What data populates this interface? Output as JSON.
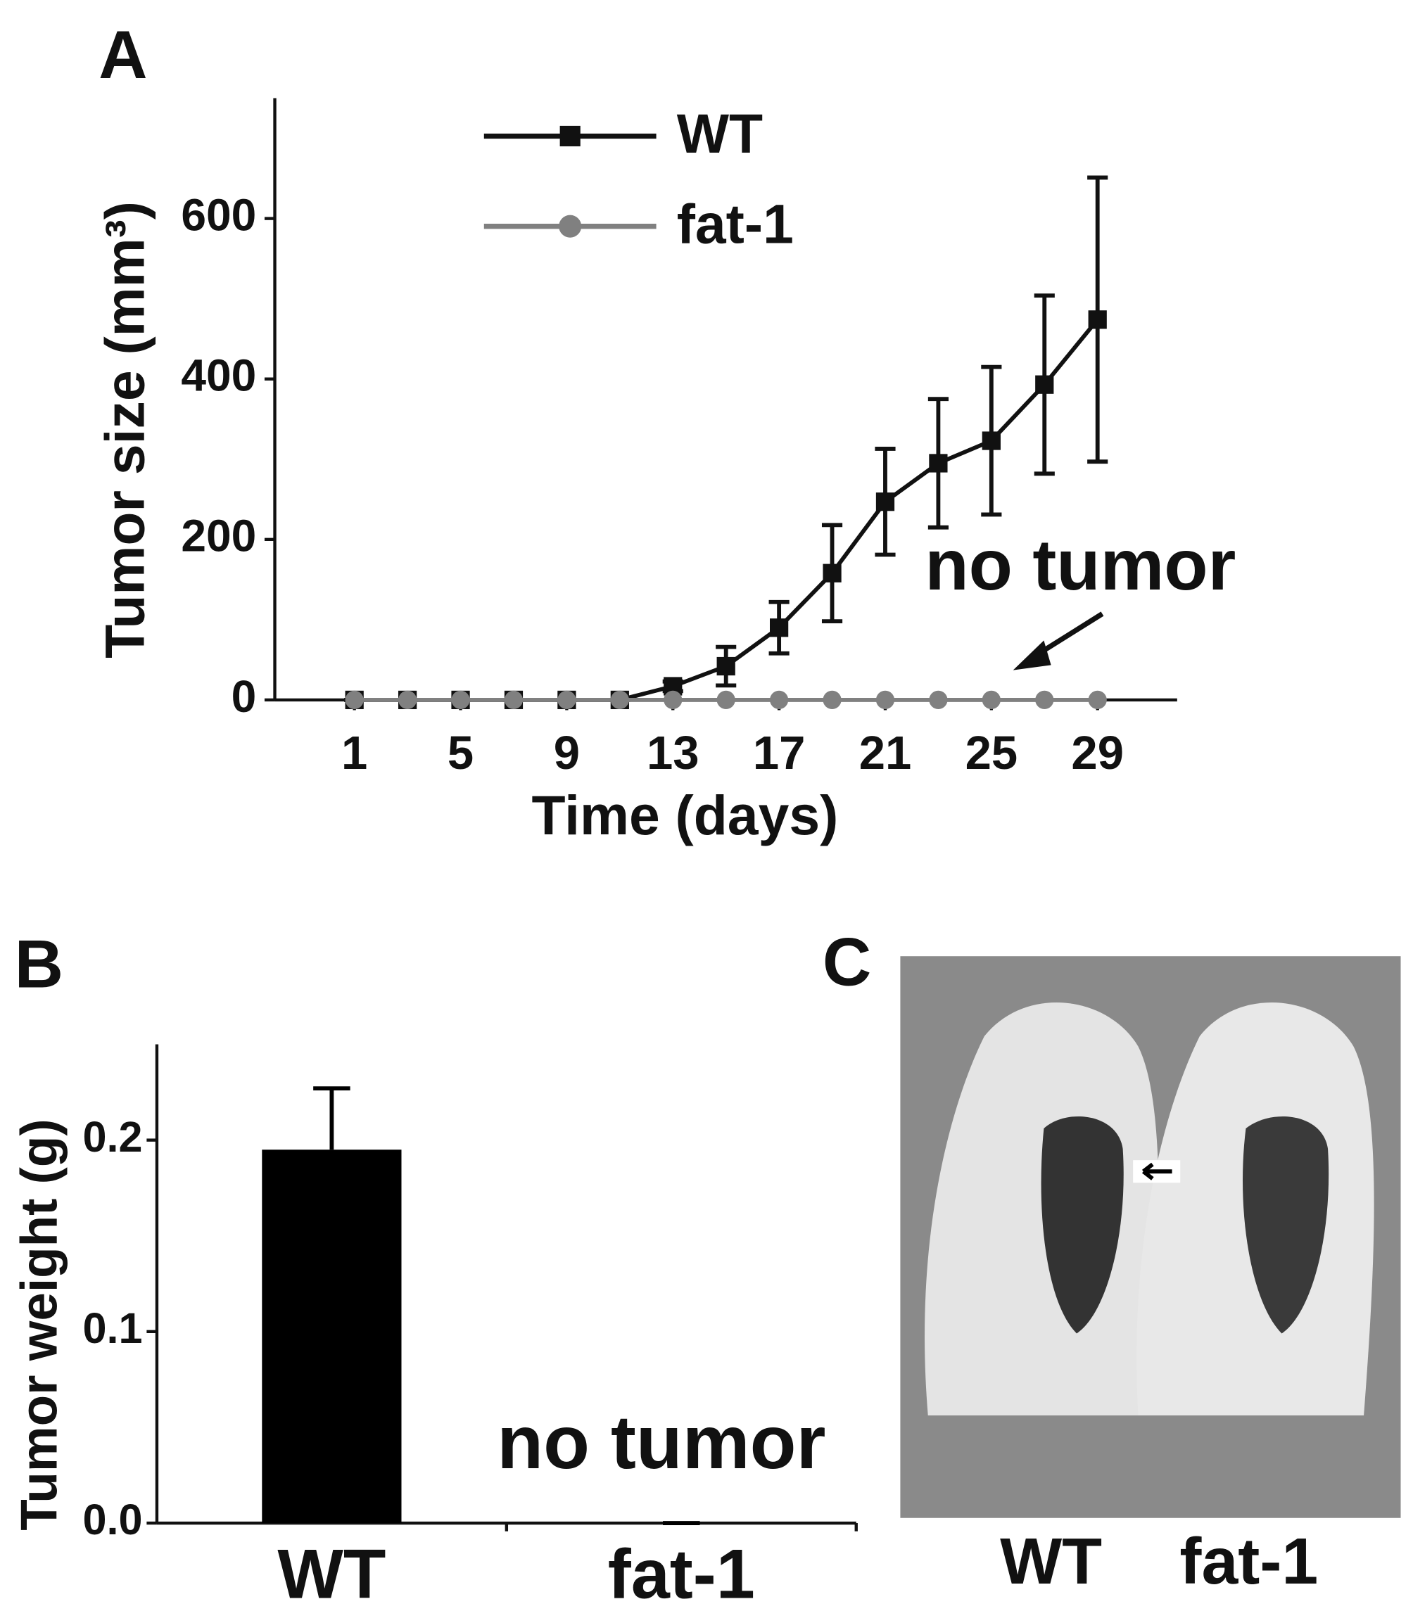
{
  "chart_data": [
    {
      "type": "line",
      "panel_label": "A",
      "x_label": "Time (days)",
      "y_label": "Tumor size (mm³)",
      "x": [
        1,
        3,
        5,
        7,
        9,
        11,
        13,
        15,
        17,
        19,
        21,
        23,
        25,
        27,
        29
      ],
      "series": [
        {
          "name": "WT",
          "color": "#111111",
          "marker": "square",
          "values": [
            0,
            0,
            0,
            0,
            0,
            0,
            17,
            42,
            90,
            158,
            247,
            295,
            323,
            393,
            474
          ],
          "errors": [
            0,
            0,
            0,
            0,
            0,
            0,
            6,
            24,
            32,
            60,
            66,
            80,
            92,
            111,
            177
          ]
        },
        {
          "name": "fat-1",
          "color": "#808080",
          "marker": "circle",
          "values": [
            0,
            0,
            0,
            0,
            0,
            0,
            0,
            0,
            0,
            0,
            0,
            0,
            0,
            0,
            0
          ]
        }
      ],
      "xlim": [
        -2,
        32
      ],
      "xticks": [
        1,
        5,
        9,
        13,
        17,
        21,
        25,
        29
      ],
      "ylim": [
        0,
        750
      ],
      "yticks": [
        0,
        200,
        400,
        600
      ],
      "legend": "top-left",
      "annotation": "no tumor"
    },
    {
      "type": "bar",
      "panel_label": "B",
      "y_label": "Tumor weight (g)",
      "categories": [
        "WT",
        "fat-1"
      ],
      "values": [
        0.195,
        0
      ],
      "errors": [
        0.032,
        0
      ],
      "color": "#000000",
      "ylim": [
        0,
        0.25
      ],
      "yticks": [
        {
          "value": 0,
          "label": "0.0"
        },
        0.1,
        0.2
      ],
      "annotation": "no tumor"
    }
  ],
  "image_panel": {
    "panel_label": "C",
    "captions": [
      "WT",
      "fat-1"
    ]
  }
}
